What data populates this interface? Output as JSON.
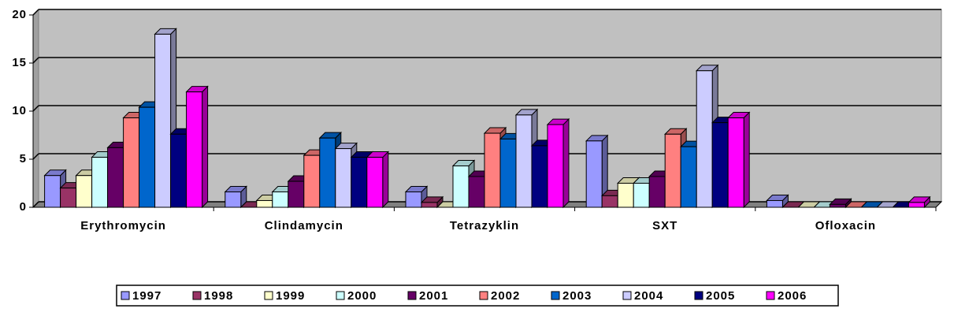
{
  "chart_data": {
    "type": "bar3d",
    "categories": [
      "Erythromycin",
      "Clindamycin",
      "Tetrazyklin",
      "SXT",
      "Ofloxacin"
    ],
    "series": [
      {
        "name": "1997",
        "color": "#9999ff",
        "values": [
          3.3,
          1.6,
          1.6,
          6.9,
          0.7
        ]
      },
      {
        "name": "1998",
        "color": "#993366",
        "values": [
          2.0,
          0,
          0.5,
          1.2,
          0
        ]
      },
      {
        "name": "1999",
        "color": "#ffffcc",
        "values": [
          3.3,
          0.7,
          0,
          2.5,
          0
        ]
      },
      {
        "name": "2000",
        "color": "#ccffff",
        "values": [
          5.2,
          1.6,
          4.3,
          2.5,
          0
        ]
      },
      {
        "name": "2001",
        "color": "#660066",
        "values": [
          6.2,
          2.7,
          3.2,
          3.2,
          0.3
        ]
      },
      {
        "name": "2002",
        "color": "#ff8080",
        "values": [
          9.3,
          5.4,
          7.7,
          7.6,
          0
        ]
      },
      {
        "name": "2003",
        "color": "#0066cc",
        "values": [
          10.4,
          7.2,
          7.1,
          6.3,
          0
        ]
      },
      {
        "name": "2004",
        "color": "#ccccff",
        "values": [
          18.0,
          6.1,
          9.6,
          14.2,
          0
        ]
      },
      {
        "name": "2005",
        "color": "#000080",
        "values": [
          7.6,
          5.2,
          6.4,
          8.8,
          0
        ]
      },
      {
        "name": "2006",
        "color": "#ff00ff",
        "values": [
          12.0,
          5.2,
          8.6,
          9.3,
          0.5
        ]
      }
    ],
    "ylim": [
      0,
      20
    ],
    "yticks": [
      0,
      5,
      10,
      15,
      20
    ],
    "grid": true,
    "legend": "bottom"
  }
}
